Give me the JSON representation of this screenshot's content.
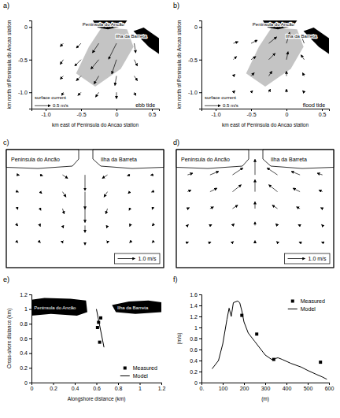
{
  "chart_data": [
    {
      "type": "quiver",
      "title": "a)",
      "x_label": "km east of Peninsula do Ancao station",
      "y_label": "km north of Peninsula do Ancao station",
      "xlim": [
        -1.2,
        0.6
      ],
      "ylim": [
        -1.25,
        0.1
      ],
      "xticks": [
        {
          "value": -1,
          "label": "-1.0"
        },
        -0.5,
        0,
        0.5
      ],
      "yticks": [
        0,
        -0.5,
        {
          "value": -1,
          "label": "-1.0"
        }
      ],
      "x": [
        -0.75,
        -0.5,
        -0.25,
        0,
        0.25,
        -0.75,
        -0.5,
        -0.25,
        0,
        0.25,
        -0.75,
        -0.5,
        -0.25,
        0,
        0.25,
        -0.75,
        -0.5,
        -0.25,
        0,
        0.25
      ],
      "y": [
        -0.25,
        -0.25,
        -0.25,
        -0.25,
        -0.25,
        -0.5,
        -0.5,
        -0.5,
        -0.5,
        -0.5,
        -0.75,
        -0.75,
        -0.75,
        -0.75,
        -0.75,
        -1,
        -1,
        -1,
        -1,
        -1
      ],
      "u": [
        -0.1,
        -0.15,
        -0.2,
        -0.25,
        0.05,
        -0.1,
        -0.2,
        -0.25,
        -0.15,
        0.1,
        -0.1,
        -0.15,
        -0.15,
        -0.05,
        0.1,
        -0.05,
        -0.1,
        -0.1,
        0,
        0.05
      ],
      "v": [
        -0.1,
        -0.15,
        -0.3,
        -0.5,
        -0.3,
        -0.15,
        -0.2,
        -0.3,
        -0.45,
        -0.2,
        -0.1,
        -0.15,
        -0.25,
        -0.3,
        -0.15,
        -0.1,
        -0.1,
        -0.15,
        -0.2,
        -0.1
      ],
      "key": {
        "title": "surface current",
        "value": 0.5,
        "label": "0.5 m/s"
      },
      "annotations": [
        "Peninsula do Ancão",
        "Ilha da Barreta",
        "ebb tide"
      ]
    },
    {
      "type": "quiver",
      "title": "b)",
      "x_label": "km east of Peninsula do Ancao station",
      "y_label": "km north of Peninsula do Ancao station",
      "xlim": [
        -1.2,
        0.6
      ],
      "ylim": [
        -1.25,
        0.1
      ],
      "xticks": [
        {
          "value": -1,
          "label": "-1.0"
        },
        -0.5,
        0,
        0.5
      ],
      "yticks": [
        0,
        -0.5,
        {
          "value": -1,
          "label": "-1.0"
        }
      ],
      "x": [
        -0.75,
        -0.5,
        -0.25,
        0,
        0.25,
        -0.75,
        -0.5,
        -0.25,
        0,
        0.25,
        -0.75,
        -0.5,
        -0.25,
        0,
        0.25,
        -0.75,
        -0.5,
        -0.25,
        0,
        0.25
      ],
      "y": [
        -0.25,
        -0.25,
        -0.25,
        -0.25,
        -0.25,
        -0.5,
        -0.5,
        -0.5,
        -0.5,
        -0.5,
        -0.75,
        -0.75,
        -0.75,
        -0.75,
        -0.75,
        -1,
        -1,
        -1,
        -1,
        -1
      ],
      "u": [
        0.15,
        0.2,
        0.25,
        0.1,
        -0.1,
        0.1,
        0.15,
        0.2,
        0.05,
        -0.1,
        0.05,
        0.1,
        0.1,
        0,
        -0.05,
        0.05,
        0.05,
        0.05,
        0,
        -0.05
      ],
      "v": [
        0.05,
        0.1,
        0.2,
        0.35,
        0.25,
        0.1,
        0.1,
        0.2,
        0.25,
        0.15,
        0.05,
        0.1,
        0.15,
        0.15,
        0.1,
        0.05,
        0.05,
        0.1,
        0.1,
        0.05
      ],
      "key": {
        "title": "surface current",
        "value": 0.5,
        "label": "0.5 m/s"
      },
      "annotations": [
        "Peninsula do Ancão",
        "Ilha da Barreta",
        "flood tide"
      ]
    },
    {
      "type": "quiver",
      "title": "c)",
      "tick_labels": false,
      "xlim": [
        -0.5,
        6.5
      ],
      "ylim": [
        -1.5,
        5.5
      ],
      "x": [
        0,
        1,
        2,
        3,
        4,
        5,
        6,
        0,
        1,
        2,
        3,
        4,
        5,
        6,
        0,
        1,
        2,
        3,
        4,
        5,
        6,
        0,
        1,
        2,
        3,
        4,
        5,
        6,
        0,
        1,
        2,
        3,
        4,
        5,
        6
      ],
      "y": [
        4,
        4,
        4,
        4,
        4,
        4,
        4,
        3,
        3,
        3,
        3,
        3,
        3,
        3,
        2,
        2,
        2,
        2,
        2,
        2,
        2,
        1,
        1,
        1,
        1,
        1,
        1,
        1,
        0,
        0,
        0,
        0,
        0,
        0,
        0
      ],
      "u": [
        0.1,
        0.15,
        0.3,
        0,
        -0.3,
        -0.15,
        -0.1,
        0.05,
        0.1,
        0.2,
        0,
        -0.2,
        -0.1,
        -0.05,
        0.02,
        0.05,
        0.1,
        0,
        -0.1,
        -0.05,
        -0.02,
        0.02,
        0.02,
        0.05,
        0,
        -0.05,
        -0.02,
        -0.02,
        0.02,
        0.02,
        0.02,
        0,
        -0.02,
        -0.02,
        -0.02
      ],
      "v": [
        -0.02,
        -0.05,
        -0.2,
        -0.9,
        -0.2,
        -0.05,
        -0.02,
        -0.02,
        -0.1,
        -0.3,
        -1.0,
        -0.3,
        -0.1,
        -0.02,
        -0.05,
        -0.1,
        -0.3,
        -0.8,
        -0.3,
        -0.1,
        -0.05,
        -0.02,
        -0.05,
        -0.15,
        -0.4,
        -0.15,
        -0.05,
        -0.02,
        -0.02,
        -0.02,
        -0.05,
        -0.15,
        -0.05,
        -0.02,
        -0.02
      ],
      "key": {
        "value": 1.0,
        "label": "1.0 m/s"
      },
      "annotations": [
        "Peninsula do Ancão",
        "Ilha da Barreta"
      ]
    },
    {
      "type": "quiver",
      "title": "d)",
      "tick_labels": false,
      "xlim": [
        -0.5,
        6.5
      ],
      "ylim": [
        -1.5,
        5.5
      ],
      "x": [
        0,
        1,
        2,
        3,
        4,
        5,
        6,
        0,
        1,
        2,
        3,
        4,
        5,
        6,
        0,
        1,
        2,
        3,
        4,
        5,
        6,
        0,
        1,
        2,
        3,
        4,
        5,
        6,
        0,
        1,
        2,
        3,
        4,
        5,
        6
      ],
      "y": [
        4,
        4,
        4,
        4,
        4,
        4,
        4,
        3,
        3,
        3,
        3,
        3,
        3,
        3,
        2,
        2,
        2,
        2,
        2,
        2,
        2,
        1,
        1,
        1,
        1,
        1,
        1,
        1,
        0,
        0,
        0,
        0,
        0,
        0,
        0
      ],
      "u": [
        0.3,
        0.5,
        0.6,
        0,
        -0.6,
        -0.5,
        -0.3,
        0.2,
        0.4,
        0.5,
        0,
        -0.5,
        -0.4,
        -0.2,
        0.1,
        0.2,
        0.3,
        0,
        -0.3,
        -0.2,
        -0.1,
        0.05,
        0.1,
        0.1,
        0,
        -0.1,
        -0.1,
        -0.05,
        0.05,
        0.05,
        0.05,
        0,
        -0.05,
        -0.05,
        -0.05
      ],
      "v": [
        0.1,
        0.2,
        0.4,
        0.9,
        0.4,
        0.2,
        0.1,
        0.1,
        0.2,
        0.4,
        0.7,
        0.4,
        0.2,
        0.1,
        0.05,
        0.1,
        0.2,
        0.4,
        0.2,
        0.1,
        0.05,
        0.05,
        0.05,
        0.1,
        0.2,
        0.1,
        0.05,
        0.05,
        0.02,
        0.02,
        0.05,
        0.1,
        0.05,
        0.02,
        0.02
      ],
      "key": {
        "value": 1.0,
        "label": "1.0 m/s"
      },
      "annotations": [
        "Peninsula do Ancão",
        "Ilha da Barreta"
      ]
    },
    {
      "type": "line",
      "title": "e)",
      "x_label": "Alongshore distance (km)",
      "y_label": "Cross-shore distance (km)",
      "xlim": [
        0,
        1.2
      ],
      "ylim": [
        0,
        1.2
      ],
      "xticks": [
        0,
        0.2,
        0.4,
        0.6,
        0.8,
        1,
        1.2
      ],
      "yticks": [
        0,
        0.2,
        0.4,
        0.6,
        0.8,
        1,
        1.2
      ],
      "legend": "lower right",
      "series": [
        {
          "name": "Measured",
          "type": "scatter",
          "marker": "square",
          "color": "#000000",
          "x": [
            0.64,
            0.62,
            0.61,
            0.63
          ],
          "values": [
            0.88,
            0.82,
            0.75,
            0.55
          ]
        },
        {
          "name": "Model",
          "type": "line",
          "line_style": "solid",
          "color": "#000000",
          "x": [
            0.6,
            0.67
          ],
          "values": [
            1.0,
            0.48
          ]
        }
      ],
      "annotations": [
        "Peninsula do Ancão",
        "Ilha da Barreta"
      ]
    },
    {
      "type": "line",
      "title": "f)",
      "x_label": "(m)",
      "y_label": "(m/s)",
      "xlim": [
        0,
        600
      ],
      "ylim": [
        0,
        1.6
      ],
      "xticks": [
        {
          "value": 0,
          "label": "0."
        },
        100,
        200,
        300,
        400,
        500,
        600
      ],
      "yticks": [
        0,
        0.2,
        0.4,
        0.6,
        0.8,
        1,
        1.2,
        1.4,
        1.6
      ],
      "legend": "upper right",
      "series": [
        {
          "name": "Measured",
          "type": "scatter",
          "marker": "square",
          "color": "#000000",
          "x": [
            190,
            260,
            340,
            560
          ],
          "values": [
            1.22,
            0.88,
            0.42,
            0.37
          ]
        },
        {
          "name": "Model",
          "type": "line",
          "line_style": "solid",
          "color": "#000000",
          "x": [
            50,
            80,
            100,
            120,
            130,
            140,
            150,
            170,
            180,
            190,
            200,
            220,
            250,
            280,
            300,
            330,
            360,
            380,
            420,
            470,
            500,
            540,
            570,
            590
          ],
          "values": [
            0.25,
            0.4,
            0.7,
            1.15,
            1.35,
            1.2,
            1.45,
            1.48,
            1.45,
            1.3,
            1.1,
            0.9,
            0.75,
            0.6,
            0.5,
            0.42,
            0.45,
            0.42,
            0.35,
            0.28,
            0.22,
            0.15,
            0.1,
            0.06
          ]
        }
      ]
    }
  ]
}
